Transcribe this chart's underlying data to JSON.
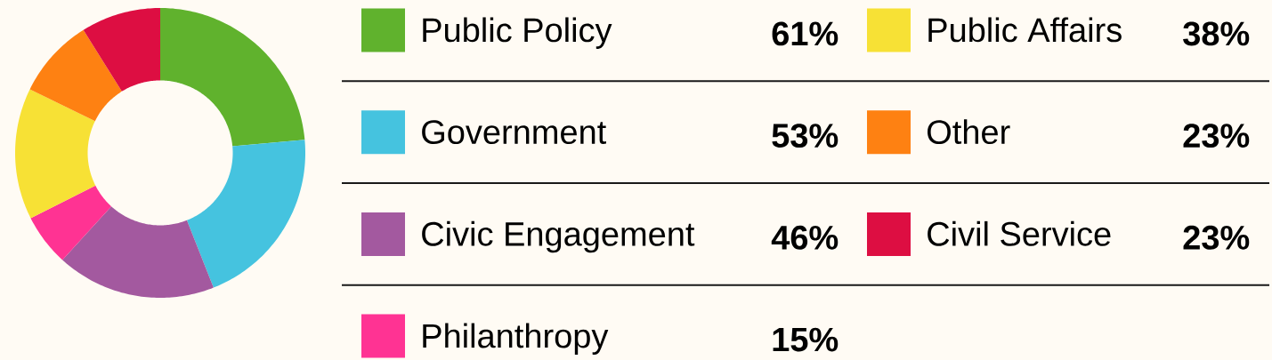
{
  "chart_data": {
    "type": "donut",
    "categories": [
      "Public Policy",
      "Government",
      "Civic Engagement",
      "Philanthropy",
      "Public Affairs",
      "Other",
      "Civil Service"
    ],
    "values": [
      61,
      53,
      46,
      15,
      38,
      23,
      23
    ],
    "colors": [
      "#60b22d",
      "#45c3df",
      "#a3599f",
      "#ff3393",
      "#f7e135",
      "#fe8112",
      "#dd0e42"
    ],
    "value_labels": [
      "61%",
      "53%",
      "46%",
      "15%",
      "38%",
      "23%",
      "23%"
    ],
    "legend": "right"
  }
}
